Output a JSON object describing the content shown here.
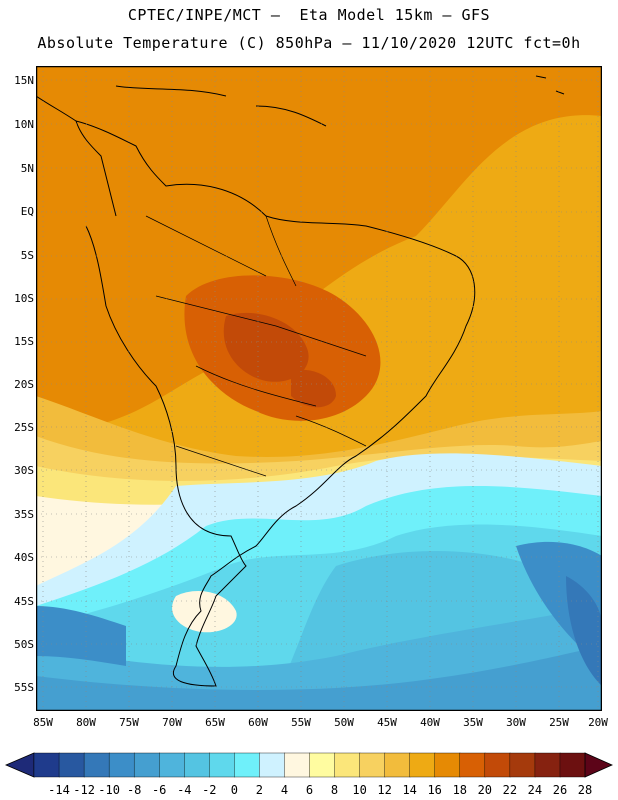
{
  "header": {
    "line1": "CPTEC/INPE/MCT –  Eta Model 15km – GFS",
    "line2": "Absolute Temperature (C) 850hPa – 11/10/2020 12UTC fct=0h"
  },
  "map": {
    "latitude_labels": [
      "15N",
      "10N",
      "5N",
      "EQ",
      "5S",
      "10S",
      "15S",
      "20S",
      "25S",
      "30S",
      "35S",
      "40S",
      "45S",
      "50S",
      "55S"
    ],
    "longitude_labels": [
      "85W",
      "80W",
      "75W",
      "70W",
      "65W",
      "60W",
      "55W",
      "50W",
      "45W",
      "40W",
      "35W",
      "30W",
      "25W",
      "20W"
    ]
  },
  "legend": {
    "unit": "C",
    "tick_labels": [
      "-14",
      "-12",
      "-10",
      "-8",
      "-6",
      "-4",
      "-2",
      "0",
      "2",
      "4",
      "6",
      "8",
      "10",
      "12",
      "14",
      "16",
      "18",
      "20",
      "22",
      "24",
      "26",
      "28"
    ],
    "colors": [
      "#1f3b8c",
      "#2858a0",
      "#3478b8",
      "#3c8ec8",
      "#459fd0",
      "#4fb4dc",
      "#54c4e2",
      "#5fd8ec",
      "#6ff0fa",
      "#cff2ff",
      "#fff7e0",
      "#fffca0",
      "#fbe67a",
      "#f7d160",
      "#f2bc3c",
      "#eeaa14",
      "#e68a04",
      "#d86004",
      "#c24a08",
      "#a53a0c",
      "#862210",
      "#6c1010"
    ],
    "under_color": "#1e2a78",
    "over_color": "#5c0418"
  }
}
